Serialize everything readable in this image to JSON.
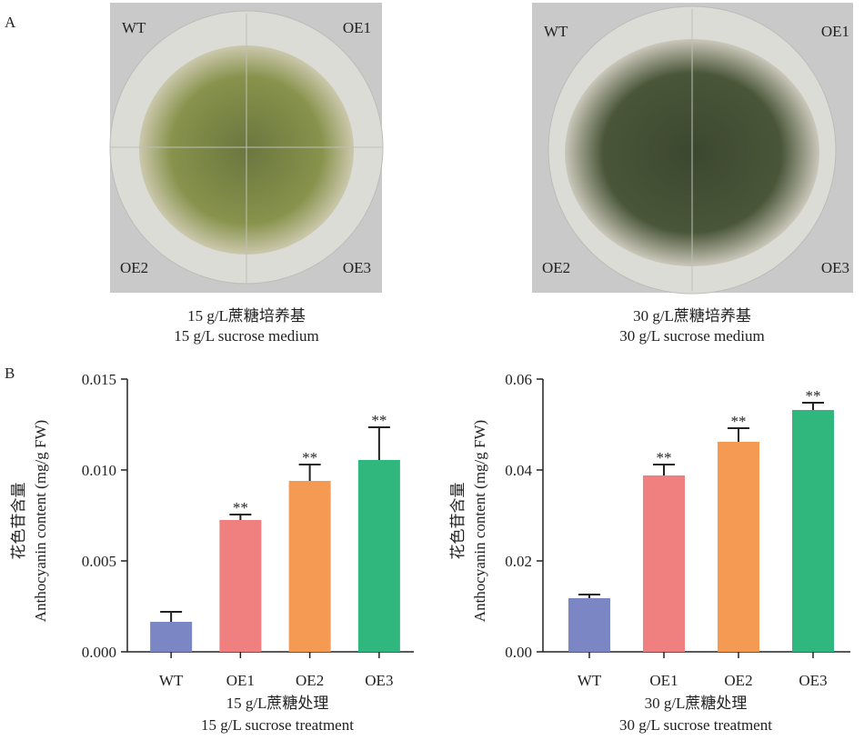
{
  "panel_labels": [
    "A",
    "B"
  ],
  "photos": [
    {
      "labels": [
        "WT",
        "OE1",
        "OE2",
        "OE3"
      ],
      "caption_zh": "15 g/L蔗糖培养基",
      "caption_en": "15 g/L sucrose medium"
    },
    {
      "labels": [
        "WT",
        "OE1",
        "OE2",
        "OE3"
      ],
      "caption_zh": "30 g/L蔗糖培养基",
      "caption_en": "30 g/L sucrose medium"
    }
  ],
  "chart_data": [
    {
      "type": "bar",
      "ylabel_zh": "花色苷含量",
      "ylabel": "Anthocyanin content (mg/g FW)",
      "xlabel_zh": "15 g/L蔗糖处理",
      "xlabel": "15 g/L sucrose treatment",
      "categories": [
        "WT",
        "OE1",
        "OE2",
        "OE3"
      ],
      "values": [
        0.00165,
        0.00725,
        0.0094,
        0.01055
      ],
      "errors": [
        0.00055,
        0.0003,
        0.0009,
        0.0018
      ],
      "significance": [
        null,
        "**",
        "**",
        "**"
      ],
      "colors": [
        "#7b86c4",
        "#f07f7f",
        "#f59a52",
        "#2fb77e"
      ],
      "ylim": [
        0,
        0.015
      ],
      "yticks": [
        {
          "value": 0,
          "label": "0.000"
        },
        0.005,
        {
          "value": 0.01,
          "label": "0.010"
        },
        0.015
      ]
    },
    {
      "type": "bar",
      "ylabel_zh": "花色苷含量",
      "ylabel": "Anthocyanin content (mg/g FW)",
      "xlabel_zh": "30 g/L蔗糖处理",
      "xlabel": "30 g/L sucrose treatment",
      "categories": [
        "WT",
        "OE1",
        "OE2",
        "OE3"
      ],
      "values": [
        0.0118,
        0.0388,
        0.0462,
        0.0532
      ],
      "errors": [
        0.0008,
        0.0024,
        0.003,
        0.0016
      ],
      "significance": [
        null,
        "**",
        "**",
        "**"
      ],
      "colors": [
        "#7b86c4",
        "#f07f7f",
        "#f59a52",
        "#2fb77e"
      ],
      "ylim": [
        0,
        0.06
      ],
      "yticks": [
        {
          "value": 0,
          "label": "0.00"
        },
        0.02,
        0.04,
        0.06
      ]
    }
  ]
}
